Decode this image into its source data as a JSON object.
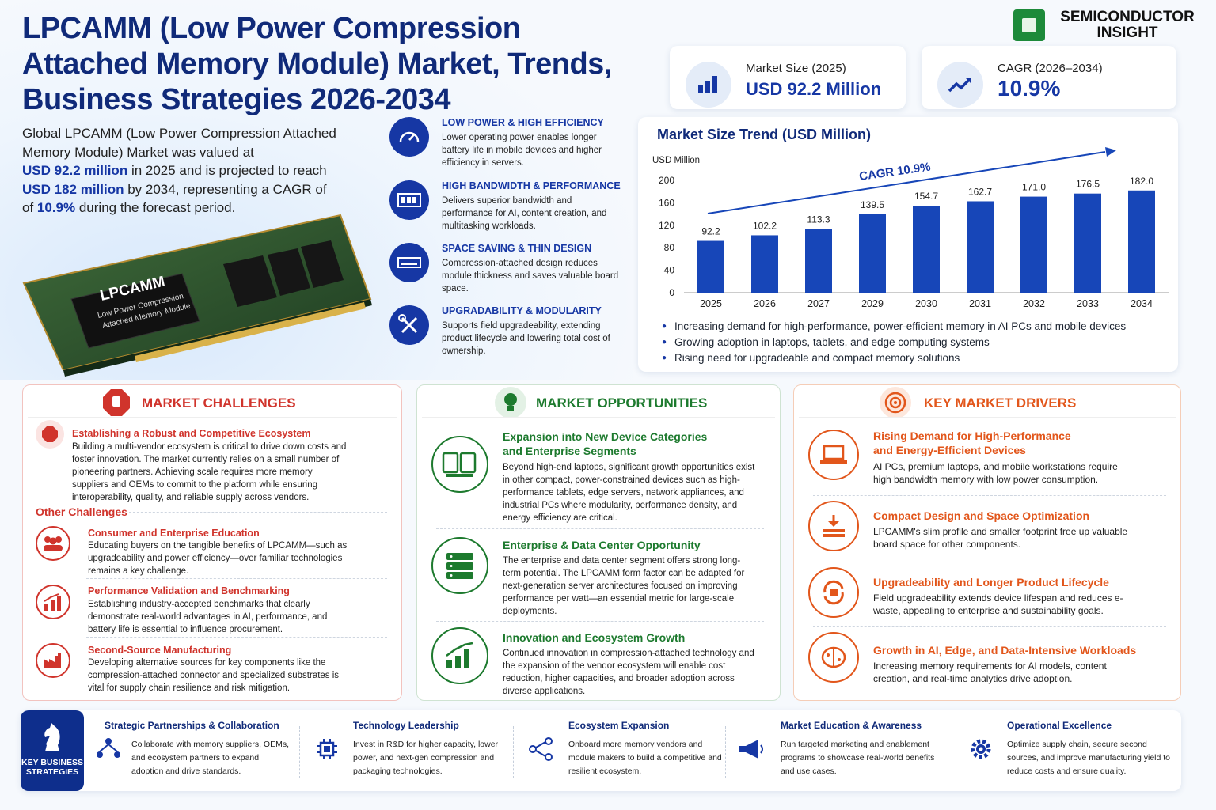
{
  "title": "LPCAMM (Low Power Compression Attached Memory Module) Market, Trends, Business Strategies 2026-2034",
  "intro": {
    "t1": "Global LPCAMM (Low Power Compression Attached Memory Module) Market was valued at",
    "v1": "USD 92.2 million",
    "t2": "in 2025 and is projected to reach",
    "v2": "USD 182 million",
    "t3": "by 2034, representing a CAGR of",
    "v3": "10.9%",
    "t4": "during the forecast period."
  },
  "logo": {
    "line1": "SEMICONDUCTOR",
    "line2": "INSIGHT"
  },
  "module": {
    "name": "LPCAMM",
    "sub1": "Low Power Compression",
    "sub2": "Attached Memory Module"
  },
  "stats": [
    {
      "label": "Market Size (2025)",
      "value": "USD 92.2 Million",
      "icon": "bar-chart-icon"
    },
    {
      "label": "CAGR (2026–2034)",
      "value": "10.9%",
      "icon": "trend-up-icon"
    }
  ],
  "features": [
    {
      "title": "LOW POWER & HIGH EFFICIENCY",
      "desc": "Lower operating power enables longer battery life in mobile devices and higher efficiency in servers.",
      "icon": "speedometer-icon"
    },
    {
      "title": "HIGH BANDWIDTH & PERFORMANCE",
      "desc": "Delivers superior bandwidth and performance for AI, content creation, and multitasking workloads.",
      "icon": "memory-icon"
    },
    {
      "title": "SPACE SAVING & THIN DESIGN",
      "desc": "Compression-attached design reduces module thickness and saves valuable board space.",
      "icon": "thin-module-icon"
    },
    {
      "title": "UPGRADABILITY & MODULARITY",
      "desc": "Supports field upgradeability, extending product lifecycle and lowering total cost of ownership.",
      "icon": "tools-icon"
    }
  ],
  "chart_data": {
    "type": "bar",
    "title": "Market Size Trend (USD Million)",
    "ylabel": "USD Million",
    "xlabel": "",
    "categories": [
      "2025",
      "2026",
      "2027",
      "2029",
      "2030",
      "2031",
      "2032",
      "2033",
      "2034"
    ],
    "values": [
      92.2,
      102.2,
      113.3,
      139.5,
      154.7,
      162.7,
      171.0,
      176.5,
      182.0
    ],
    "value_labels": [
      "92.2",
      "102.2",
      "113.3",
      "139.5",
      "154.7",
      "162.7",
      "171.0",
      "176.5",
      "182.0"
    ],
    "yticks": [
      "0",
      "40",
      "80",
      "120",
      "160",
      "200"
    ],
    "ylim": [
      0,
      200
    ],
    "annotation": "CAGR 10.9%",
    "bar_color": "#1746b8",
    "grid": false
  },
  "chart_bullets": [
    "Increasing demand for high-performance, power-efficient memory in AI PCs and mobile devices",
    "Growing adoption in laptops, tablets, and edge computing systems",
    "Rising need for upgradeable and compact memory solutions"
  ],
  "challenges": {
    "title": "MARKET CHALLENGES",
    "main_title": "Establishing a Robust and Competitive Ecosystem",
    "main_desc": "Building a multi-vendor ecosystem is critical to drive down costs and foster innovation. The market currently relies on a small number of pioneering partners. Achieving scale requires more memory suppliers and OEMs to commit to the platform while ensuring interoperability, quality, and reliable supply across vendors.",
    "other": "Other Challenges",
    "items": [
      {
        "title": "Consumer and Enterprise Education",
        "desc": "Educating buyers on the tangible benefits of LPCAMM—such as upgradeability and power efficiency—over familiar technologies remains a key challenge."
      },
      {
        "title": "Performance Validation and Benchmarking",
        "desc": "Establishing industry-accepted benchmarks that clearly demonstrate real-world advantages in AI, performance, and battery life is essential to influence procurement."
      },
      {
        "title": "Second-Source Manufacturing",
        "desc": "Developing alternative sources for key components like the compression-attached connector and specialized substrates is vital for supply chain resilience and risk mitigation."
      }
    ]
  },
  "opportunities": {
    "title": "MARKET OPPORTUNITIES",
    "items": [
      {
        "title1": "Expansion into New Device Categories",
        "title2": "and Enterprise Segments",
        "desc": "Beyond high-end laptops, significant growth opportunities exist in other compact, power-constrained devices such as high-performance tablets, edge servers, network appliances, and industrial PCs where modularity, performance density, and energy efficiency are critical."
      },
      {
        "title1": "Enterprise & Data Center Opportunity",
        "title2": "",
        "desc": "The enterprise and data center segment offers strong long-term potential. The LPCAMM form factor can be adapted for next-generation server architectures focused on improving performance per watt—an essential metric for large-scale deployments."
      },
      {
        "title1": "Innovation and Ecosystem Growth",
        "title2": "",
        "desc": "Continued innovation in compression-attached technology and the expansion of the vendor ecosystem will enable cost reduction, higher capacities, and broader adoption across diverse applications."
      }
    ]
  },
  "drivers": {
    "title": "KEY MARKET DRIVERS",
    "items": [
      {
        "title1": "Rising Demand for High-Performance",
        "title2": "and Energy-Efficient Devices",
        "desc": "AI PCs, premium laptops, and mobile workstations require high bandwidth memory with low power consumption."
      },
      {
        "title1": "Compact Design and Space Optimization",
        "title2": "",
        "desc": "LPCAMM's slim profile and smaller footprint free up valuable board space for other components."
      },
      {
        "title1": "Upgradeability and Longer Product Lifecycle",
        "title2": "",
        "desc": "Field upgradeability extends device lifespan and reduces e-waste, appealing to enterprise and sustainability goals."
      },
      {
        "title1": "Growth in AI, Edge, and Data-Intensive Workloads",
        "title2": "",
        "desc": "Increasing memory requirements for AI models, content creation, and real-time analytics drive adoption."
      }
    ]
  },
  "strategies": {
    "label": "KEY BUSINESS STRATEGIES",
    "items": [
      {
        "title": "Strategic Partnerships & Collaboration",
        "desc": "Collaborate with memory suppliers, OEMs, and ecosystem partners to expand adoption and drive standards."
      },
      {
        "title": "Technology Leadership",
        "desc": "Invest in R&D for higher capacity, lower power, and next-gen compression and packaging technologies."
      },
      {
        "title": "Ecosystem Expansion",
        "desc": "Onboard more memory vendors and module makers to build a competitive and resilient ecosystem."
      },
      {
        "title": "Market Education & Awareness",
        "desc": "Run targeted marketing and enablement programs to showcase real-world benefits and use cases."
      },
      {
        "title": "Operational Excellence",
        "desc": "Optimize supply chain, secure second sources, and improve manufacturing yield to reduce costs and ensure quality."
      }
    ]
  },
  "colors": {
    "navy": "#102a79",
    "blue": "#1637a4",
    "red": "#d0342c",
    "green": "#1d7a2e",
    "orange": "#e2561b"
  }
}
